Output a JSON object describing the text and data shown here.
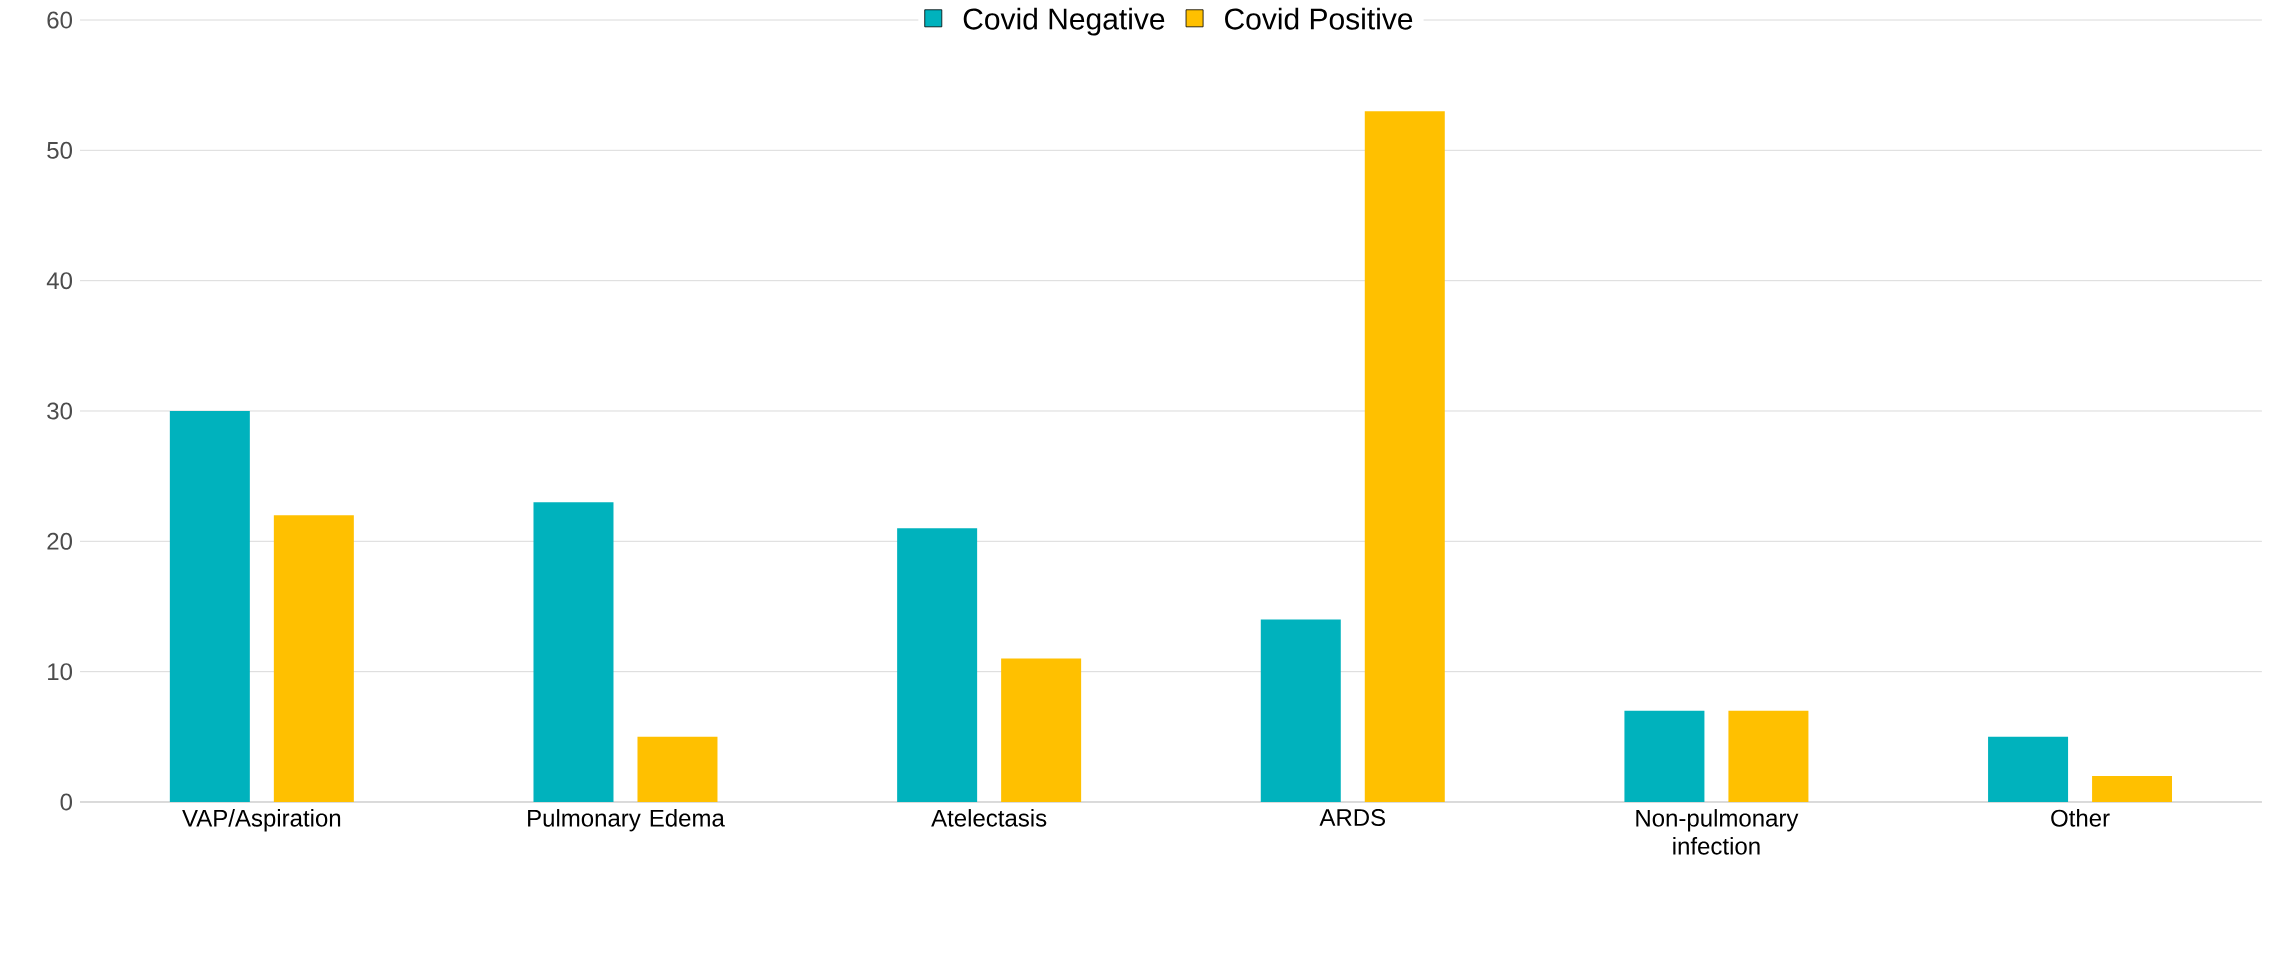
{
  "chart_data": {
    "type": "bar",
    "categories": [
      "VAP/Aspiration",
      "Pulmonary Edema",
      "Atelectasis",
      "ARDS",
      "Non-pulmonary infection",
      "Other"
    ],
    "series": [
      {
        "name": "Covid Negative",
        "color": "#00b2bd",
        "values": [
          30,
          23,
          21,
          14,
          7,
          5
        ]
      },
      {
        "name": "Covid Positive",
        "color": "#ffc000",
        "values": [
          22,
          5,
          11,
          53,
          7,
          2
        ]
      }
    ],
    "ylim": [
      0,
      60
    ],
    "yticks": [
      0,
      10,
      20,
      30,
      40,
      50,
      60
    ],
    "grid": "y",
    "legend": "top"
  }
}
